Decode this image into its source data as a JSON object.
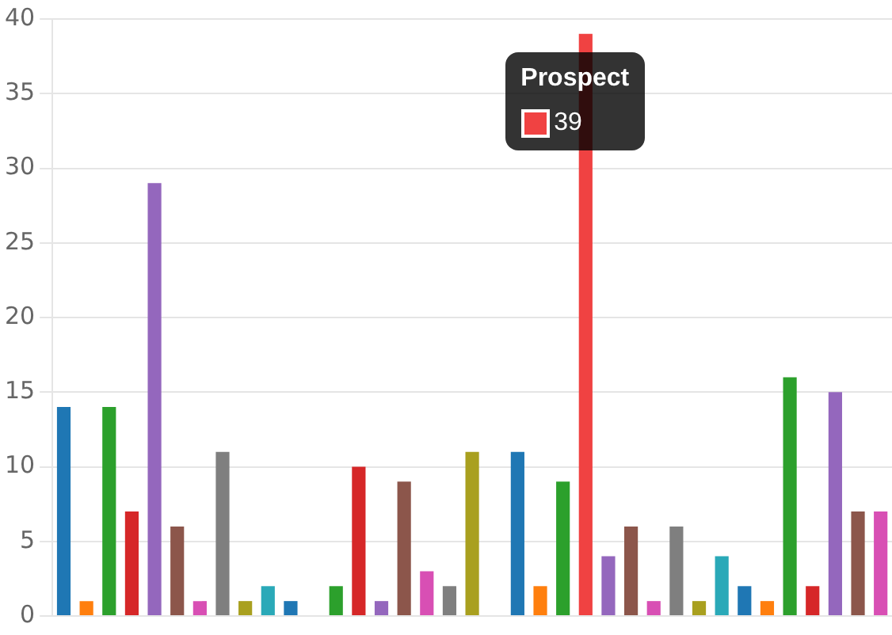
{
  "chart_data": {
    "type": "bar",
    "categories": [
      null,
      null,
      null,
      null,
      null,
      null,
      null,
      null,
      null,
      null,
      null,
      null,
      null,
      null,
      null,
      null,
      null,
      null,
      null,
      null,
      null,
      null,
      null,
      null,
      null,
      null,
      null,
      null,
      null,
      null,
      null,
      null,
      null,
      null,
      null,
      null,
      null
    ],
    "values": [
      14,
      1,
      14,
      7,
      29,
      6,
      1,
      11,
      1,
      2,
      1,
      0,
      2,
      10,
      1,
      9,
      3,
      2,
      11,
      0,
      11,
      2,
      9,
      39,
      4,
      6,
      1,
      6,
      1,
      4,
      2,
      1,
      16,
      2,
      15,
      7,
      7
    ],
    "colors": [
      "#1f77b4",
      "#ff7f0e",
      "#2ca02c",
      "#d62728",
      "#9467bd",
      "#8c564b",
      "#d84fb4",
      "#7f7f7f",
      "#a9a01f",
      "#2aa9b8",
      "#1f77b4",
      "#ff7f0e",
      "#2ca02c",
      "#d62728",
      "#9467bd",
      "#8c564b",
      "#d84fb4",
      "#7f7f7f",
      "#a9a01f",
      "#2aa9b8",
      "#1f77b4",
      "#ff7f0e",
      "#2ca02c",
      "#f04242",
      "#9467bd",
      "#8c564b",
      "#d84fb4",
      "#7f7f7f",
      "#a9a01f",
      "#2aa9b8",
      "#1f77b4",
      "#ff7f0e",
      "#2ca02c",
      "#d62728",
      "#9467bd",
      "#8c564b",
      "#d84fb4"
    ],
    "value_labels": [
      null,
      null,
      null,
      null,
      null,
      null,
      null,
      null,
      null,
      null,
      null,
      null,
      null,
      null,
      null,
      null,
      null,
      null,
      null,
      null,
      null,
      null,
      null,
      "39",
      null,
      null,
      null,
      null,
      null,
      null,
      null,
      null,
      null,
      null,
      null,
      null,
      null
    ],
    "annotations": [
      "Prospect"
    ],
    "ylim": [
      0,
      40
    ],
    "yticks": [
      0,
      5,
      10,
      15,
      20,
      25,
      30,
      35,
      40
    ],
    "grid": "y",
    "tick_labels": "y",
    "legend": false
  }
}
